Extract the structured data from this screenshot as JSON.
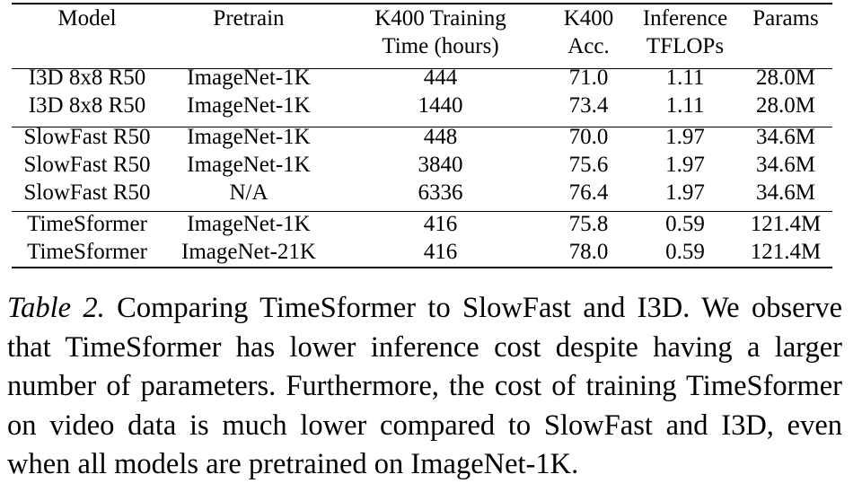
{
  "table": {
    "headers": [
      {
        "line1": "Model",
        "line2": ""
      },
      {
        "line1": "Pretrain",
        "line2": ""
      },
      {
        "line1": "K400 Training",
        "line2": "Time (hours)"
      },
      {
        "line1": "K400",
        "line2": "Acc."
      },
      {
        "line1": "Inference",
        "line2": "TFLOPs"
      },
      {
        "line1": "Params",
        "line2": ""
      }
    ],
    "rows": [
      {
        "model": "I3D 8x8 R50",
        "pretrain": "ImageNet-1K",
        "time": "444",
        "acc": "71.0",
        "tflops": "1.11",
        "params": "28.0M"
      },
      {
        "model": "I3D 8x8 R50",
        "pretrain": "ImageNet-1K",
        "time": "1440",
        "acc": "73.4",
        "tflops": "1.11",
        "params": "28.0M"
      },
      {
        "model": "SlowFast R50",
        "pretrain": "ImageNet-1K",
        "time": "448",
        "acc": "70.0",
        "tflops": "1.97",
        "params": "34.6M"
      },
      {
        "model": "SlowFast R50",
        "pretrain": "ImageNet-1K",
        "time": "3840",
        "acc": "75.6",
        "tflops": "1.97",
        "params": "34.6M"
      },
      {
        "model": "SlowFast R50",
        "pretrain": "N/A",
        "time": "6336",
        "acc": "76.4",
        "tflops": "1.97",
        "params": "34.6M"
      },
      {
        "model": "TimeSformer",
        "pretrain": "ImageNet-1K",
        "time": "416",
        "acc": "75.8",
        "tflops": "0.59",
        "params": "121.4M"
      },
      {
        "model": "TimeSformer",
        "pretrain": "ImageNet-21K",
        "time": "416",
        "acc": "78.0",
        "tflops": "0.59",
        "params": "121.4M"
      }
    ]
  },
  "caption": {
    "label": "Table 2.",
    "text": "Comparing TimeSformer to SlowFast and I3D. We observe that TimeSformer has lower inference cost despite having a larger number of parameters. Furthermore, the cost of training TimeSformer on video data is much lower compared to SlowFast and I3D, even when all models are pretrained on ImageNet-1K."
  }
}
